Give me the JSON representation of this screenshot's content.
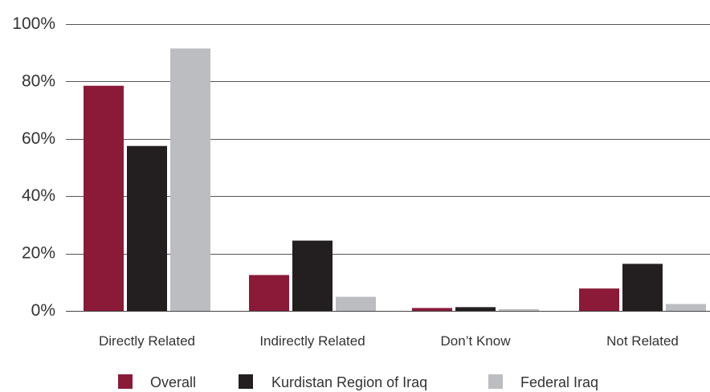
{
  "chart_data": {
    "type": "bar",
    "title": "",
    "xlabel": "",
    "ylabel": "",
    "categories": [
      "Directly Related",
      "Indirectly Related",
      "Don’t Know",
      "Not Related"
    ],
    "series": [
      {
        "name": "Overall",
        "color": "#8b1a38",
        "values": [
          78.5,
          12.5,
          1.0,
          7.8
        ]
      },
      {
        "name": "Kurdistan Region of Iraq",
        "color": "#231f20",
        "values": [
          57.5,
          24.5,
          1.3,
          16.4
        ]
      },
      {
        "name": "Federal Iraq",
        "color": "#bcbdc0",
        "values": [
          91.5,
          4.9,
          0.6,
          2.4
        ]
      }
    ],
    "ylim": [
      0,
      100
    ],
    "yticks": [
      "0%",
      "20%",
      "40%",
      "60%",
      "80%",
      "100%"
    ],
    "ytick_values": [
      0,
      20,
      40,
      60,
      80,
      100
    ],
    "grid": true,
    "legend_position": "bottom"
  }
}
